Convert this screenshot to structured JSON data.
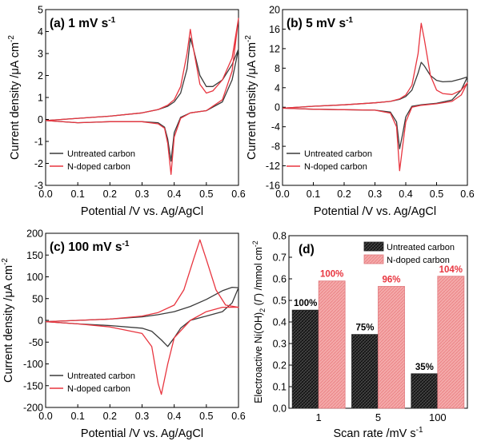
{
  "colors": {
    "untreated": "#3a3a3a",
    "ndoped": "#e8353f",
    "ndoped_fill": "#f4a9a9",
    "pct_untreated": "#000000",
    "pct_ndoped": "#e8353f"
  },
  "chart_data": [
    {
      "id": "a",
      "type": "line",
      "panel_label": "(a)",
      "title": "1 mV s",
      "title_sup": "-1",
      "xlabel": "Potential /V vs. Ag/AgCl",
      "ylabel": "Current density /μA cm",
      "ylabel_sup": "-2",
      "xlim": [
        0,
        0.6
      ],
      "ylim": [
        -3,
        5
      ],
      "xticks": [
        "0.0",
        "0.1",
        "0.2",
        "0.3",
        "0.4",
        "0.5",
        "0.6"
      ],
      "yticks": [
        "-3",
        "-2",
        "-1",
        "0",
        "1",
        "2",
        "3",
        "4",
        "5"
      ],
      "legend_position": "bottom-left",
      "series": [
        {
          "name": "Untreated carbon",
          "color_key": "untreated",
          "x": [
            0.0,
            0.1,
            0.2,
            0.3,
            0.35,
            0.38,
            0.4,
            0.42,
            0.44,
            0.45,
            0.46,
            0.48,
            0.5,
            0.52,
            0.55,
            0.58,
            0.6,
            0.58,
            0.55,
            0.5,
            0.45,
            0.42,
            0.4,
            0.39,
            0.38,
            0.37,
            0.35,
            0.3,
            0.2,
            0.1,
            0.0
          ],
          "y": [
            -0.05,
            0.05,
            0.15,
            0.3,
            0.45,
            0.6,
            0.8,
            1.2,
            2.3,
            3.7,
            3.2,
            2.0,
            1.5,
            1.5,
            1.8,
            2.5,
            3.2,
            1.8,
            0.8,
            0.4,
            0.3,
            0.1,
            -0.6,
            -1.9,
            -0.9,
            -0.35,
            -0.15,
            -0.1,
            -0.1,
            -0.15,
            -0.05
          ]
        },
        {
          "name": "N-doped carbon",
          "color_key": "ndoped",
          "x": [
            0.0,
            0.1,
            0.2,
            0.3,
            0.35,
            0.38,
            0.4,
            0.42,
            0.44,
            0.45,
            0.46,
            0.48,
            0.5,
            0.52,
            0.55,
            0.58,
            0.6,
            0.58,
            0.55,
            0.5,
            0.45,
            0.42,
            0.4,
            0.39,
            0.38,
            0.37,
            0.35,
            0.3,
            0.2,
            0.1,
            0.0
          ],
          "y": [
            -0.05,
            0.05,
            0.15,
            0.3,
            0.45,
            0.65,
            0.9,
            1.5,
            3.0,
            4.1,
            3.2,
            1.6,
            1.2,
            1.3,
            1.8,
            2.8,
            4.6,
            2.2,
            0.9,
            0.4,
            0.3,
            0.05,
            -0.8,
            -2.5,
            -1.1,
            -0.4,
            -0.2,
            -0.1,
            -0.1,
            -0.15,
            -0.05
          ]
        }
      ]
    },
    {
      "id": "b",
      "type": "line",
      "panel_label": "(b)",
      "title": "5 mV s",
      "title_sup": "-1",
      "xlabel": "Potential /V vs. Ag/AgCl",
      "ylabel": "Current density /μA cm",
      "ylabel_sup": "-2",
      "xlim": [
        0,
        0.6
      ],
      "ylim": [
        -16,
        20
      ],
      "xticks": [
        "0.0",
        "0.1",
        "0.2",
        "0.3",
        "0.4",
        "0.5",
        "0.6"
      ],
      "yticks": [
        "-16",
        "-12",
        "-8",
        "-4",
        "0",
        "4",
        "8",
        "12",
        "16",
        "20"
      ],
      "legend_position": "bottom-left",
      "series": [
        {
          "name": "Untreated carbon",
          "color_key": "untreated",
          "x": [
            0.0,
            0.1,
            0.2,
            0.3,
            0.35,
            0.38,
            0.4,
            0.42,
            0.44,
            0.45,
            0.46,
            0.48,
            0.5,
            0.52,
            0.55,
            0.58,
            0.6,
            0.58,
            0.55,
            0.5,
            0.45,
            0.42,
            0.4,
            0.39,
            0.38,
            0.37,
            0.35,
            0.3,
            0.2,
            0.1,
            0.0
          ],
          "y": [
            -0.2,
            0.2,
            0.5,
            0.9,
            1.2,
            1.6,
            2.2,
            3.5,
            7.0,
            9.2,
            8.5,
            6.5,
            5.5,
            5.2,
            5.3,
            5.8,
            6.2,
            3.5,
            1.5,
            0.8,
            0.5,
            0.2,
            -2.0,
            -5.5,
            -8.5,
            -3.0,
            -1.0,
            -0.6,
            -0.5,
            -0.4,
            -0.2
          ]
        },
        {
          "name": "N-doped carbon",
          "color_key": "ndoped",
          "x": [
            0.0,
            0.1,
            0.2,
            0.3,
            0.35,
            0.38,
            0.4,
            0.42,
            0.44,
            0.45,
            0.46,
            0.48,
            0.5,
            0.52,
            0.55,
            0.58,
            0.6,
            0.58,
            0.55,
            0.5,
            0.45,
            0.42,
            0.4,
            0.39,
            0.38,
            0.37,
            0.35,
            0.3,
            0.2,
            0.1,
            0.0
          ],
          "y": [
            -0.2,
            0.2,
            0.5,
            0.9,
            1.2,
            1.7,
            2.5,
            4.5,
            11.0,
            17.2,
            14.0,
            6.5,
            3.5,
            2.8,
            2.6,
            3.5,
            5.0,
            2.5,
            1.2,
            0.7,
            0.4,
            0.0,
            -3.0,
            -8.0,
            -13.0,
            -4.0,
            -1.2,
            -0.6,
            -0.5,
            -0.4,
            -0.2
          ]
        }
      ]
    },
    {
      "id": "c",
      "type": "line",
      "panel_label": "(c)",
      "title": "100 mV s",
      "title_sup": "-1",
      "xlabel": "Potential /V vs. Ag/AgCl",
      "ylabel": "Current density /μA cm",
      "ylabel_sup": "-2",
      "xlim": [
        0,
        0.6
      ],
      "ylim": [
        -200,
        200
      ],
      "xticks": [
        "0.0",
        "0.1",
        "0.2",
        "0.3",
        "0.4",
        "0.5",
        "0.6"
      ],
      "yticks": [
        "-200",
        "-150",
        "-100",
        "-50",
        "0",
        "50",
        "100",
        "150",
        "200"
      ],
      "legend_position": "bottom-left",
      "series": [
        {
          "name": "Untreated carbon",
          "color_key": "untreated",
          "x": [
            0.0,
            0.1,
            0.2,
            0.3,
            0.35,
            0.4,
            0.45,
            0.5,
            0.55,
            0.58,
            0.6,
            0.58,
            0.55,
            0.5,
            0.45,
            0.42,
            0.4,
            0.38,
            0.36,
            0.33,
            0.3,
            0.2,
            0.1,
            0.0
          ],
          "y": [
            -3,
            0,
            3,
            8,
            13,
            20,
            32,
            48,
            68,
            76,
            75,
            40,
            20,
            10,
            0,
            -18,
            -40,
            -60,
            -45,
            -25,
            -18,
            -12,
            -8,
            -3
          ]
        },
        {
          "name": "N-doped carbon",
          "color_key": "ndoped",
          "x": [
            0.0,
            0.1,
            0.2,
            0.3,
            0.35,
            0.4,
            0.43,
            0.46,
            0.48,
            0.5,
            0.53,
            0.56,
            0.6,
            0.58,
            0.55,
            0.5,
            0.45,
            0.4,
            0.38,
            0.36,
            0.35,
            0.33,
            0.3,
            0.2,
            0.1,
            0.0
          ],
          "y": [
            -3,
            0,
            3,
            10,
            18,
            35,
            70,
            140,
            185,
            140,
            70,
            35,
            30,
            30,
            30,
            20,
            0,
            -40,
            -100,
            -170,
            -145,
            -60,
            -30,
            -15,
            -8,
            -3
          ]
        }
      ]
    },
    {
      "id": "d",
      "type": "bar",
      "panel_label": "(d)",
      "xlabel": "Scan rate /mV s",
      "xlabel_sup": "-1",
      "ylabel_parts": [
        "Electroactive Ni(OH)",
        "2",
        " (",
        "Γ",
        ") /mmol cm",
        "-2"
      ],
      "ylim": [
        0,
        0.8
      ],
      "yticks": [
        "0.0",
        "0.1",
        "0.2",
        "0.3",
        "0.4",
        "0.5",
        "0.6",
        "0.7",
        "0.8"
      ],
      "categories": [
        "1",
        "5",
        "100"
      ],
      "legend_position": "top-right",
      "series": [
        {
          "name": "Untreated carbon",
          "color_key": "untreated",
          "values": [
            0.455,
            0.342,
            0.16
          ],
          "labels": [
            "100%",
            "75%",
            "35%"
          ]
        },
        {
          "name": "N-doped carbon",
          "color_key": "ndoped_fill",
          "values": [
            0.59,
            0.565,
            0.612
          ],
          "labels": [
            "100%",
            "96%",
            "104%"
          ]
        }
      ]
    }
  ]
}
